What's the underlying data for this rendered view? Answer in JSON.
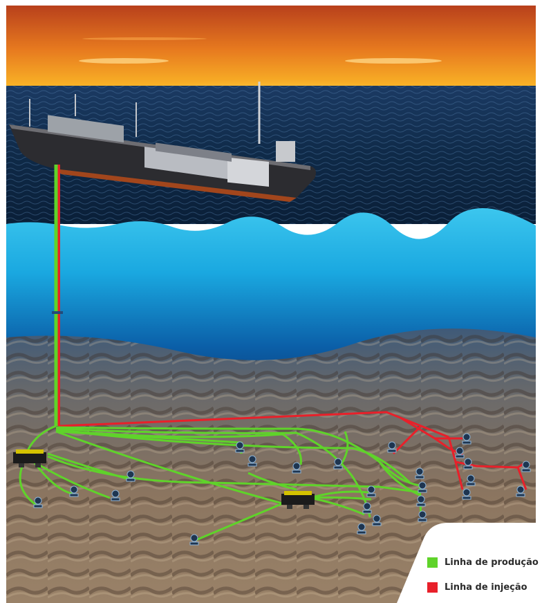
{
  "legend": {
    "items": [
      {
        "label": "Linha de produção",
        "color": "#5fd32a"
      },
      {
        "label": "Linha de injeção",
        "color": "#e8202a"
      }
    ]
  },
  "colors": {
    "production_line": "#5fd32a",
    "injection_line": "#e8202a",
    "sky_top": "#c9471c",
    "sky_horizon": "#f7a21a",
    "sea_surface": "#0d2540",
    "underwater": "#1fb4e6",
    "seabed": "#7d6a56"
  },
  "icons": [
    "fpso-ship",
    "wellhead",
    "manifold"
  ]
}
